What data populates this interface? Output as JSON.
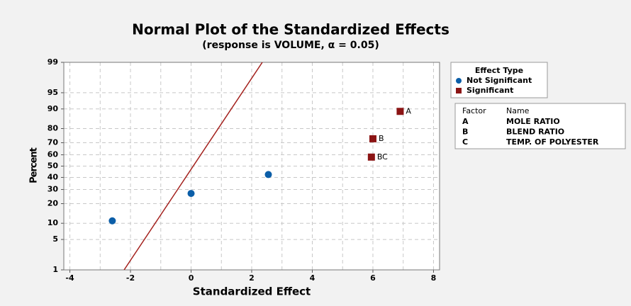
{
  "chart_data": {
    "type": "normal-probability",
    "title": "Normal Plot of the Standardized Effects",
    "subtitle": "(response is VOLUME, α = 0.05)",
    "x_label": "Standardized Effect",
    "y_label": "Percent",
    "xlim": [
      -4.2,
      8.2
    ],
    "xticks": [
      -4,
      -2,
      0,
      2,
      4,
      6,
      8
    ],
    "xminorticks": [
      -3,
      -1,
      1,
      3,
      5,
      7
    ],
    "ylim": [
      1,
      99
    ],
    "yticks": [
      1,
      5,
      10,
      20,
      30,
      40,
      50,
      60,
      70,
      80,
      90,
      95,
      99
    ],
    "grid": true,
    "y_scale": "normal-probability",
    "series": [
      {
        "name": "Not Significant",
        "color": "#0b5ea8",
        "marker": "circle",
        "x": [
          -2.6,
          0,
          2.55
        ],
        "y": [
          11,
          27,
          42.5
        ]
      },
      {
        "name": "Significant",
        "color": "#8b1414",
        "marker": "square",
        "x": [
          6.9,
          6.0,
          5.95
        ],
        "y": [
          89,
          73,
          58
        ],
        "labels": [
          "A",
          "B",
          "BC"
        ]
      }
    ],
    "fit_line": {
      "color": "#a3201c",
      "x": [
        -2.21,
        2.35
      ],
      "y": [
        1,
        99
      ]
    },
    "legend_title": "Effect Type",
    "factor_table": {
      "header": [
        "Factor",
        "Name"
      ],
      "rows": [
        [
          "A",
          "MOLE RATIO"
        ],
        [
          "B",
          "BLEND RATIO"
        ],
        [
          "C",
          "TEMP. OF POLYESTER"
        ]
      ]
    }
  }
}
